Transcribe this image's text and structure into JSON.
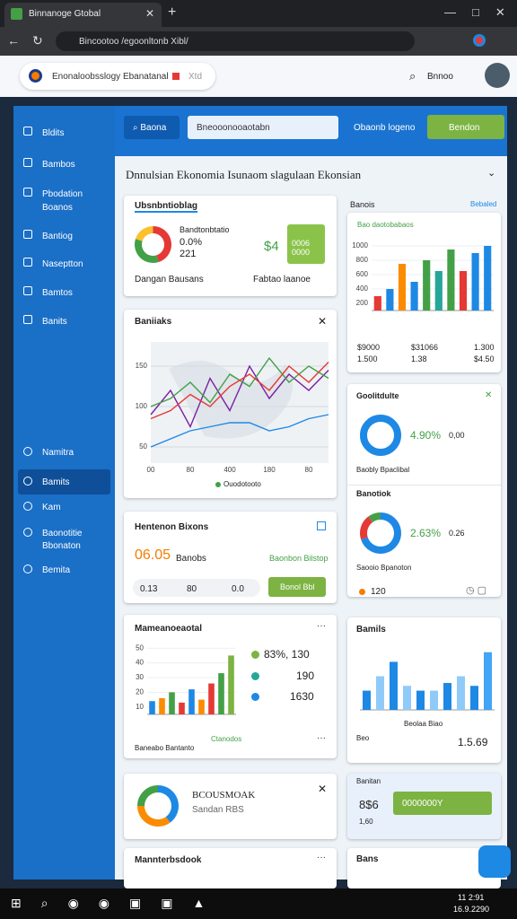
{
  "browser": {
    "tab_title": "Binnanoge Gtobal",
    "address": "Bincootoo /egoonltonb Xibl/"
  },
  "header": {
    "search_text": "Enonaloobsslogy Ebanatanal",
    "search_tag": "Xtd",
    "user_label": "Bnnoo"
  },
  "sidebar": {
    "items": [
      "Bldits",
      "Bambos",
      "Pbodation Boanos",
      "Bantiog",
      "Naseptton",
      "Bamtos",
      "Banits"
    ],
    "lower_items": [
      "Namitra",
      "Bamits",
      "Kam",
      "Baonotitie Bbonaton",
      "Bemita"
    ]
  },
  "toolbar": {
    "button": "Baona",
    "search_placeholder": "Bneooonooaotabn",
    "link": "Obaonb logeno",
    "action": "Bendon"
  },
  "page_title": "Dnnulsian Ekonomia Isunaom slagulaan Ekonsian",
  "summary_card": {
    "title": "Ubsnbntioblag",
    "subtitle": "Bandtonbtatio",
    "value_1": "0.0%",
    "value_2": "221",
    "big_value": "$4",
    "badge": "0006 0000",
    "footer_left": "Dangan Bausans",
    "footer_right": "Fabtao laanoe",
    "donut": [
      {
        "value": 45,
        "color": "#e53935"
      },
      {
        "value": 35,
        "color": "#43a047"
      },
      {
        "value": 20,
        "color": "#fbc02d"
      }
    ]
  },
  "map_card": {
    "title": "Baniiaks",
    "legend": "Ouodotooto",
    "chart": {
      "type": "line",
      "ylim": [
        30,
        180
      ],
      "yticks": [
        50,
        100,
        150
      ],
      "categories": [
        "00",
        null,
        "80",
        null,
        "400",
        null,
        "180",
        null,
        "80",
        null
      ],
      "series": [
        {
          "color": "#7b1fa2",
          "values": [
            90,
            120,
            75,
            135,
            95,
            150,
            110,
            140,
            120,
            145
          ]
        },
        {
          "color": "#43a047",
          "values": [
            100,
            110,
            130,
            105,
            140,
            125,
            160,
            130,
            150,
            135
          ]
        },
        {
          "color": "#e53935",
          "values": [
            85,
            95,
            115,
            100,
            125,
            140,
            120,
            150,
            130,
            155
          ]
        },
        {
          "color": "#1e88e5",
          "values": [
            50,
            60,
            70,
            75,
            80,
            80,
            70,
            75,
            85,
            90
          ]
        }
      ]
    }
  },
  "highlight_card": {
    "title": "Hentenon Bixons",
    "value": "06.05",
    "value_label": "Banobs",
    "link": "Baonbon Bilstop",
    "row": [
      "0.13",
      "80",
      "0.0"
    ],
    "button": "Bonol Bbl"
  },
  "bar_card": {
    "title": "Mameanoeaotal",
    "stats": [
      "83%, 130",
      "190",
      "1630"
    ],
    "footer_left": "Baneabo Bantanto",
    "legend": "Ctanodos",
    "chart": {
      "type": "bar",
      "ylim": [
        5,
        55
      ],
      "yticks": [
        10,
        20,
        30,
        40,
        50
      ],
      "values": [
        14,
        16,
        20,
        13,
        22,
        15,
        26,
        33,
        45
      ],
      "colors": [
        "#1e88e5",
        "#fb8c00",
        "#43a047",
        "#e53935",
        "#1e88e5",
        "#fb8c00",
        "#e53935",
        "#43a047",
        "#7cb342"
      ]
    }
  },
  "ring_card": {
    "title": "BCOUSMOAK",
    "subtitle": "Sandan RBS",
    "donut": [
      {
        "value": 40,
        "color": "#1e88e5"
      },
      {
        "value": 35,
        "color": "#fb8c00"
      },
      {
        "value": 25,
        "color": "#43a047"
      }
    ]
  },
  "notebook_card": {
    "title": "Mannterbsdook"
  },
  "revenue_card": {
    "header": "Banois",
    "header_link": "Bebaled",
    "chart_title": "Bao daotobabaos",
    "chart": {
      "type": "bar",
      "ylim": [
        100,
        1100
      ],
      "yticks": [
        200,
        400,
        600,
        800,
        1000
      ],
      "values": [
        300,
        400,
        750,
        500,
        800,
        650,
        950,
        650,
        900,
        1000
      ],
      "colors": [
        "#e53935",
        "#1e88e5",
        "#fb8c00",
        "#1e88e5",
        "#43a047",
        "#26a69a",
        "#43a047",
        "#e53935",
        "#1e88e5",
        "#1e88e5"
      ]
    },
    "stats": [
      "$9000",
      "$31066",
      "1.300",
      "1.500",
      "1.38",
      "$4.50"
    ]
  },
  "goal_card": {
    "title": "Goolitdulte",
    "percent": "4.90%",
    "value": "0,00",
    "caption": "Baobly Bpaclibal",
    "donut": [
      {
        "value": 100,
        "color": "#1e88e5"
      }
    ],
    "title_2": "Banotiok",
    "percent_2": "2.63%",
    "value_2": "0.26",
    "caption_2": "Saooio Bpanoton",
    "count": "120",
    "donut_2": [
      {
        "value": 70,
        "color": "#1e88e5"
      },
      {
        "value": 20,
        "color": "#e53935"
      },
      {
        "value": 10,
        "color": "#43a047"
      }
    ]
  },
  "mail_card": {
    "title": "Bamils",
    "axis_label": "Beolaa Biao",
    "footer_left": "Beo",
    "footer_value": "1.5.69",
    "chart": {
      "type": "bar",
      "ylim": [
        0,
        70
      ],
      "values": [
        20,
        35,
        50,
        25,
        20,
        20,
        28,
        35,
        25,
        60
      ],
      "colors": [
        "#1e88e5",
        "#90caf9",
        "#1e88e5",
        "#90caf9",
        "#1e88e5",
        "#90caf9",
        "#1e88e5",
        "#90caf9",
        "#1e88e5",
        "#42a5f5"
      ]
    }
  },
  "balance_card": {
    "title": "Banitan",
    "value": "8$6",
    "bar_label": "0000000Y",
    "sub_value": "1,60"
  },
  "last_card": {
    "title": "Bans"
  },
  "taskbar": {
    "time": "11 2:91",
    "date": "16.9.2290"
  }
}
